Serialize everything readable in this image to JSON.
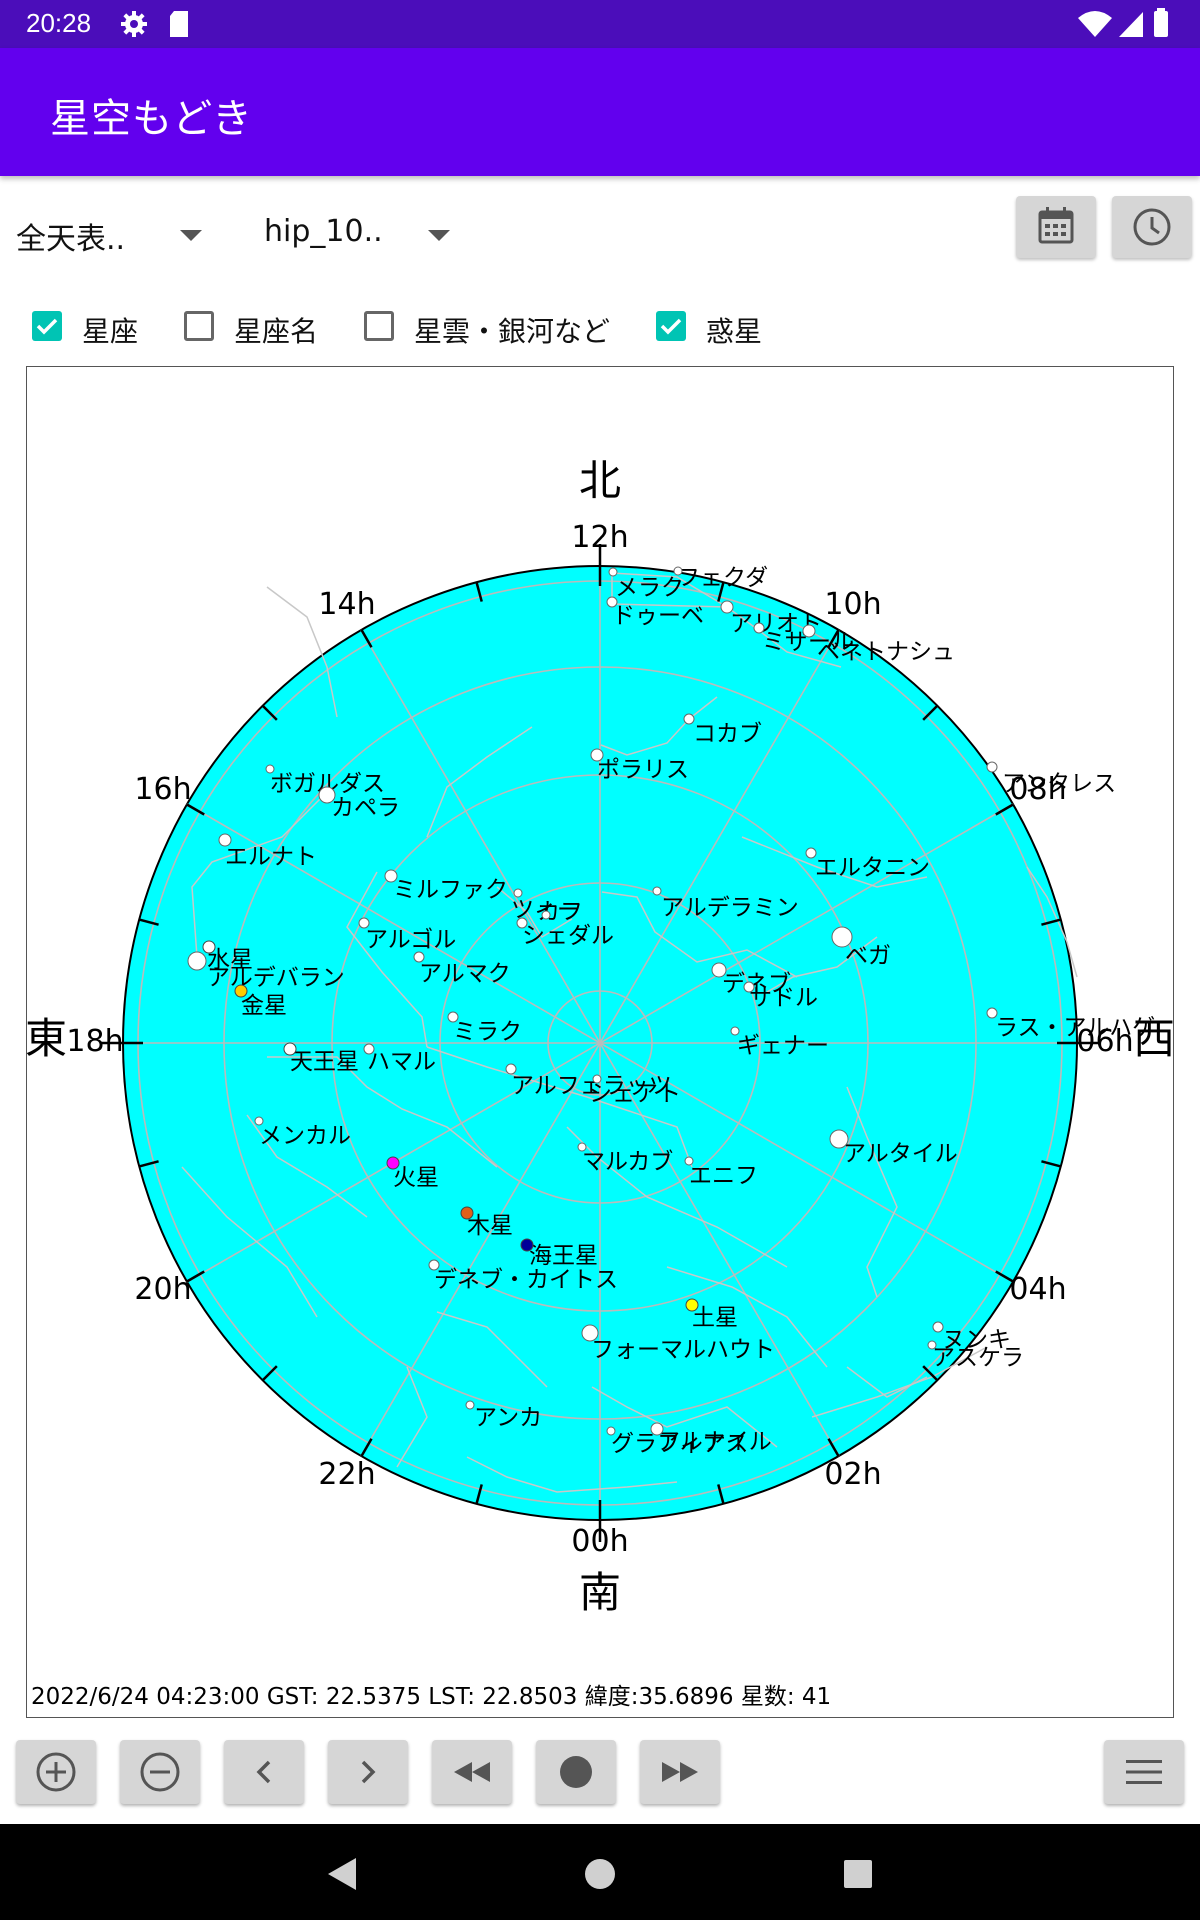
{
  "status_bar": {
    "time": "20:28"
  },
  "app_bar": {
    "title": "星空もどき"
  },
  "controls": {
    "view_mode": "全天表..",
    "catalog": "hip_10.."
  },
  "checkboxes": [
    {
      "label": "星座",
      "checked": true
    },
    {
      "label": "星座名",
      "checked": false
    },
    {
      "label": "星雲・銀河など",
      "checked": false
    },
    {
      "label": "惑星",
      "checked": true
    }
  ],
  "sky_chart": {
    "background_color": "#00ffff",
    "directions": {
      "north": "北",
      "south": "南",
      "east": "東",
      "west": "西"
    },
    "hour_labels": [
      "00h",
      "02h",
      "04h",
      "06h",
      "08h",
      "10h",
      "12h",
      "14h",
      "16h",
      "18h",
      "20h",
      "22h"
    ],
    "stars": [
      {
        "name": "メラク"
      },
      {
        "name": "フェクダ"
      },
      {
        "name": "ドゥーベ"
      },
      {
        "name": "アリオト"
      },
      {
        "name": "ミザール"
      },
      {
        "name": "ベネトナシュ"
      },
      {
        "name": "コカブ"
      },
      {
        "name": "ポラリス"
      },
      {
        "name": "ボガルダス"
      },
      {
        "name": "カペラ"
      },
      {
        "name": "エルナト"
      },
      {
        "name": "ミルファク"
      },
      {
        "name": "ツィー"
      },
      {
        "name": "カフ"
      },
      {
        "name": "シェダル"
      },
      {
        "name": "アルゴル"
      },
      {
        "name": "アルマク"
      },
      {
        "name": "アルデラミン"
      },
      {
        "name": "エルタニン"
      },
      {
        "name": "ベガ"
      },
      {
        "name": "デネブ"
      },
      {
        "name": "サドル"
      },
      {
        "name": "ギェナー"
      },
      {
        "name": "ラス・アルハゲ"
      },
      {
        "name": "ミラク"
      },
      {
        "name": "ハマル"
      },
      {
        "name": "アルフェラッツ"
      },
      {
        "name": "シェアト"
      },
      {
        "name": "アルデバラン"
      },
      {
        "name": "メンカル"
      },
      {
        "name": "マルカブ"
      },
      {
        "name": "エニフ"
      },
      {
        "name": "アルタイル"
      },
      {
        "name": "デネブ・カイトス"
      },
      {
        "name": "フォーマルハウト"
      },
      {
        "name": "アンカ"
      },
      {
        "name": "グラフィアス"
      },
      {
        "name": "アルナイル"
      },
      {
        "name": "ヌンキ"
      },
      {
        "name": "アスケラ"
      },
      {
        "name": "アンタレス"
      }
    ],
    "planets": [
      {
        "name": "水星",
        "color": "#ffffff"
      },
      {
        "name": "金星",
        "color": "#ffcc00"
      },
      {
        "name": "天王星",
        "color": "#ffffff"
      },
      {
        "name": "火星",
        "color": "#ff00ff"
      },
      {
        "name": "木星",
        "color": "#e0601a"
      },
      {
        "name": "海王星",
        "color": "#000099"
      },
      {
        "name": "土星",
        "color": "#ffff00"
      }
    ],
    "info": "2022/6/24 04:23:00 GST: 22.5375 LST: 22.8503 緯度:35.6896 星数: 41"
  },
  "bottom_buttons": [
    {
      "icon": "zoom-in-icon"
    },
    {
      "icon": "zoom-out-icon"
    },
    {
      "icon": "previous-icon"
    },
    {
      "icon": "next-icon"
    },
    {
      "icon": "rewind-icon"
    },
    {
      "icon": "record-icon"
    },
    {
      "icon": "fast-forward-icon"
    },
    {
      "icon": "menu-icon"
    }
  ]
}
